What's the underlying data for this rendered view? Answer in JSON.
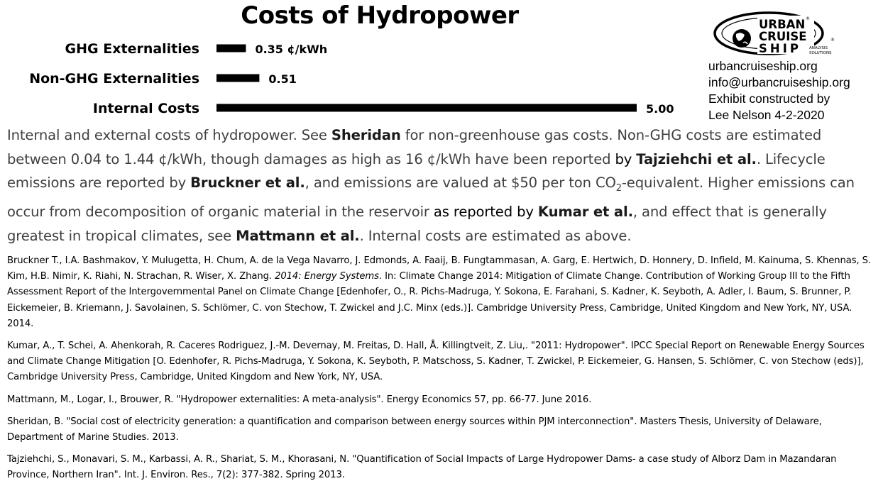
{
  "chart_data": {
    "type": "bar",
    "orientation": "horizontal",
    "title": "Costs of Hydropower",
    "categories": [
      "GHG Externalities",
      "Non-GHG Externalities",
      "Internal Costs"
    ],
    "values": [
      0.35,
      0.51,
      5.0
    ],
    "value_labels": [
      "0.35 ¢/kWh",
      "0.51",
      "5.00"
    ],
    "unit": "¢/kWh",
    "xlim": [
      0,
      5
    ],
    "grid": false,
    "bar_color": "#000000"
  },
  "logo": {
    "line1": "URBAN",
    "line2": "CRUISE",
    "line3": "SHIP",
    "tag1": "ANALYSIS",
    "tag2": "SOLUTIONS",
    "reg": "®"
  },
  "contact": {
    "website": "urbancruiseship.org",
    "email": "info@urbancruiseship.org",
    "credit1": "Exhibit constructed by",
    "credit2": "Lee Nelson 4-2-2020"
  },
  "description": {
    "s1a": "Internal and external costs of hydropower. See ",
    "s1b": "Sheridan",
    "s1c": " for non-greenhouse gas costs. Non-GHG costs are estimated between 0.04 to 1.44 ¢/kWh, though damages as high as 16 ¢/kWh have been reported ",
    "s1d": "by ",
    "s1e": "Tajziehchi et al.",
    "s2a": ". Lifecycle emissions are reported by ",
    "s2b": "Bruckner et al.",
    "s2c": ", and emissions are valued at $50 per ton CO",
    "s2sub": "2",
    "s2d": "-equivalent. Higher emissions can occur from decomposition of organic material in the reservoir ",
    "s2e": "as reported by ",
    "s2f": "Kumar et al.",
    "s2g": ", and effect that is generally greatest in tropical climates, see ",
    "s2h": "Mattmann et al.",
    "s2i": ". Internal costs are estimated as above."
  },
  "references": {
    "bruckner_a": "Bruckner T., I.A. Bashmakov, Y. Mulugetta, H. Chum, A. de la Vega Navarro, J. Edmonds, A. Faaij, B. Fungtammasan, A. Garg, E. Hertwich, D. Honnery, D. Infield, M. Kainuma, S. Khennas, S. Kim, H.B. Nimir, K. Riahi, N. Strachan, R. Wiser, X. Zhang. ",
    "bruckner_i": "2014: Energy Systems",
    "bruckner_b": ". In: Climate Change 2014: Mitigation of Climate Change. Contribution of Working Group III to the Fifth Assessment Report of the Intergovernmental Panel on Climate Change [Edenhofer, O., R. Pichs-Madruga, Y. Sokona, E. Farahani, S. Kadner, K. Seyboth, A. Adler, I. Baum, S. Brunner, P. Eickemeier, B. Kriemann, J. Savolainen, S. Schlömer, C. von Stechow, T. Zwickel and J.C. Minx (eds.)]. Cambridge University Press, Cambridge, United Kingdom and New York, NY, USA. 2014.",
    "kumar": "Kumar, A., T. Schei, A. Ahenkorah, R. Caceres Rodriguez, J.-M. Devernay, M. Freitas, D. Hall, Å. Killingtveit, Z. Liu,. \"2011: Hydropower\". IPCC Special Report on Renewable Energy Sources and Climate Change Mitigation [O. Edenhofer, R. Pichs-Madruga, Y. Sokona, K. Seyboth, P. Matschoss, S. Kadner, T. Zwickel, P. Eickemeier, G. Hansen, S. Schlömer, C. von Stechow (eds)], Cambridge University Press, Cambridge, United Kingdom and New York, NY, USA.",
    "mattmann": "Mattmann, M., Logar, I., Brouwer, R. \"Hydropower externalities: A meta-analysis\". Energy Economics 57, pp. 66-77. June 2016.",
    "sheridan": "Sheridan, B. \"Social cost of electricity generation: a quantification and comparison between energy sources within PJM interconnection\". Masters Thesis, University of Delaware, Department of Marine Studies. 2013.",
    "tajziehchi": "Tajziehchi, S., Monavari, S. M., Karbassi, A. R., Shariat, S. M., Khorasani, N. \"Quantification of Social Impacts of Large Hydropower Dams- a case study of Alborz Dam in Mazandaran Province, Northern Iran\". Int. J. Environ. Res., 7(2): 377-382. Spring 2013."
  }
}
